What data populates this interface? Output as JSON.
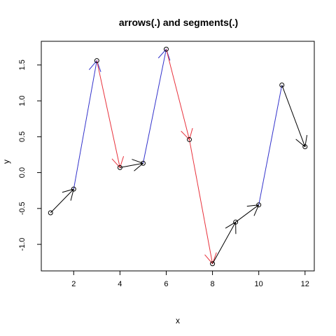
{
  "chart_data": {
    "type": "line",
    "title": "arrows(.) and segments(.)",
    "xlabel": "x",
    "ylabel": "y",
    "xlim": [
      0.6,
      12.4
    ],
    "ylim": [
      -1.37,
      1.83
    ],
    "xticks": [
      2,
      4,
      6,
      8,
      10,
      12
    ],
    "yticks": [
      -1.0,
      -0.5,
      0.0,
      0.5,
      1.0,
      1.5
    ],
    "ytick_labels": [
      "-1.0",
      "-0.5",
      "0.0",
      "0.5",
      "1.0",
      "1.5"
    ],
    "grid": false,
    "points": {
      "x": [
        1,
        2,
        3,
        4,
        5,
        6,
        7,
        8,
        9,
        10,
        11,
        12
      ],
      "y": [
        -0.56,
        -0.23,
        1.56,
        0.07,
        0.13,
        1.72,
        0.46,
        -1.27,
        -0.69,
        -0.45,
        1.22,
        0.36
      ],
      "marker": "open-circle"
    },
    "segment_colors": {
      "up_large": "#3333cc",
      "down_large": "#e8323c",
      "small": "#000000"
    },
    "segments": [
      {
        "x0": 1,
        "y0": -0.56,
        "x1": 2,
        "y1": -0.23,
        "color": "small",
        "arrow": true
      },
      {
        "x0": 2,
        "y0": -0.23,
        "x1": 3,
        "y1": 1.56,
        "color": "up_large",
        "arrow": true
      },
      {
        "x0": 3,
        "y0": 1.56,
        "x1": 4,
        "y1": 0.07,
        "color": "down_large",
        "arrow": true
      },
      {
        "x0": 4,
        "y0": 0.07,
        "x1": 5,
        "y1": 0.13,
        "color": "small",
        "arrow": true
      },
      {
        "x0": 5,
        "y0": 0.13,
        "x1": 6,
        "y1": 1.72,
        "color": "up_large",
        "arrow": true
      },
      {
        "x0": 6,
        "y0": 1.72,
        "x1": 7,
        "y1": 0.46,
        "color": "down_large",
        "arrow": true
      },
      {
        "x0": 7,
        "y0": 0.46,
        "x1": 8,
        "y1": -1.27,
        "color": "down_large",
        "arrow": true
      },
      {
        "x0": 8,
        "y0": -1.27,
        "x1": 9,
        "y1": -0.69,
        "color": "small",
        "arrow": true
      },
      {
        "x0": 9,
        "y0": -0.69,
        "x1": 10,
        "y1": -0.45,
        "color": "small",
        "arrow": true
      },
      {
        "x0": 10,
        "y0": -0.45,
        "x1": 11,
        "y1": 1.22,
        "color": "up_large",
        "arrow": false
      },
      {
        "x0": 11,
        "y0": 1.22,
        "x1": 12,
        "y1": 0.36,
        "color": "small",
        "arrow": true
      }
    ]
  }
}
